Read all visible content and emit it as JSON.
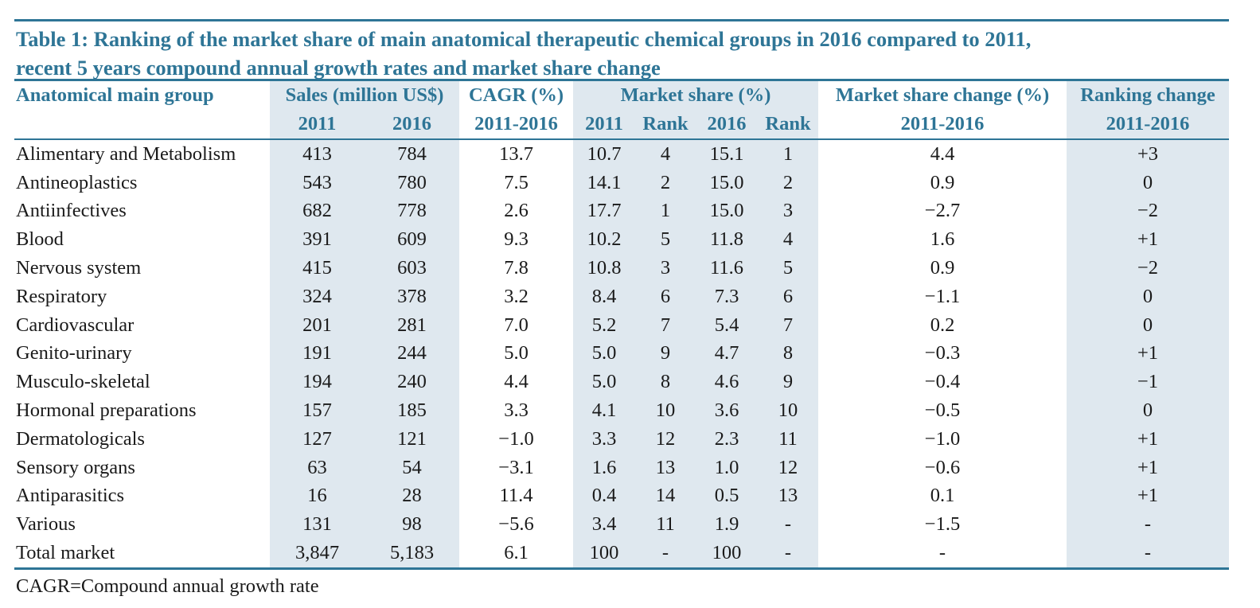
{
  "title": "Table 1: Ranking of the market share of main anatomical therapeutic chemical groups in 2016 compared to 2011,",
  "title_line2": "recent 5 years compound annual growth rates and market share change",
  "headers": {
    "group": "Anatomical main group",
    "sales": "Sales (million US$)",
    "cagr": "CAGR (%)",
    "market_share": "Market share (%)",
    "ms_change": "Market share change (%)",
    "rank_change": "Ranking change",
    "sales_2011": "2011",
    "sales_2016": "2016",
    "cagr_period": "2011-2016",
    "ms_2011": "2011",
    "ms_rank_2011": "Rank",
    "ms_2016": "2016",
    "ms_rank_2016": "Rank",
    "ms_change_period": "2011-2016",
    "rank_change_period": "2011-2016"
  },
  "rows": [
    [
      "Alimentary and Metabolism",
      "413",
      "784",
      "13.7",
      "10.7",
      "4",
      "15.1",
      "1",
      "4.4",
      "+3"
    ],
    [
      "Antineoplastics",
      "543",
      "780",
      "7.5",
      "14.1",
      "2",
      "15.0",
      "2",
      "0.9",
      "0"
    ],
    [
      "Antiinfectives",
      "682",
      "778",
      "2.6",
      "17.7",
      "1",
      "15.0",
      "3",
      "−2.7",
      "−2"
    ],
    [
      "Blood",
      "391",
      "609",
      "9.3",
      "10.2",
      "5",
      "11.8",
      "4",
      "1.6",
      "+1"
    ],
    [
      "Nervous system",
      "415",
      "603",
      "7.8",
      "10.8",
      "3",
      "11.6",
      "5",
      "0.9",
      "−2"
    ],
    [
      "Respiratory",
      "324",
      "378",
      "3.2",
      "8.4",
      "6",
      "7.3",
      "6",
      "−1.1",
      "0"
    ],
    [
      "Cardiovascular",
      "201",
      "281",
      "7.0",
      "5.2",
      "7",
      "5.4",
      "7",
      "0.2",
      "0"
    ],
    [
      "Genito-urinary",
      "191",
      "244",
      "5.0",
      "5.0",
      "9",
      "4.7",
      "8",
      "−0.3",
      "+1"
    ],
    [
      "Musculo-skeletal",
      "194",
      "240",
      "4.4",
      "5.0",
      "8",
      "4.6",
      "9",
      "−0.4",
      "−1"
    ],
    [
      "Hormonal preparations",
      "157",
      "185",
      "3.3",
      "4.1",
      "10",
      "3.6",
      "10",
      "−0.5",
      "0"
    ],
    [
      "Dermatologicals",
      "127",
      "121",
      "−1.0",
      "3.3",
      "12",
      "2.3",
      "11",
      "−1.0",
      "+1"
    ],
    [
      "Sensory organs",
      "63",
      "54",
      "−3.1",
      "1.6",
      "13",
      "1.0",
      "12",
      "−0.6",
      "+1"
    ],
    [
      "Antiparasitics",
      "16",
      "28",
      "11.4",
      "0.4",
      "14",
      "0.5",
      "13",
      "0.1",
      "+1"
    ],
    [
      "Various",
      "131",
      "98",
      "−5.6",
      "3.4",
      "11",
      "1.9",
      "-",
      "−1.5",
      "-"
    ],
    [
      "Total market",
      "3,847",
      "5,183",
      "6.1",
      "100",
      "-",
      "100",
      "-",
      "-",
      "-"
    ]
  ],
  "footnote": "CAGR=Compound annual growth rate",
  "colors": {
    "accent": "#2e7596",
    "shade": "#dfe8ef"
  }
}
